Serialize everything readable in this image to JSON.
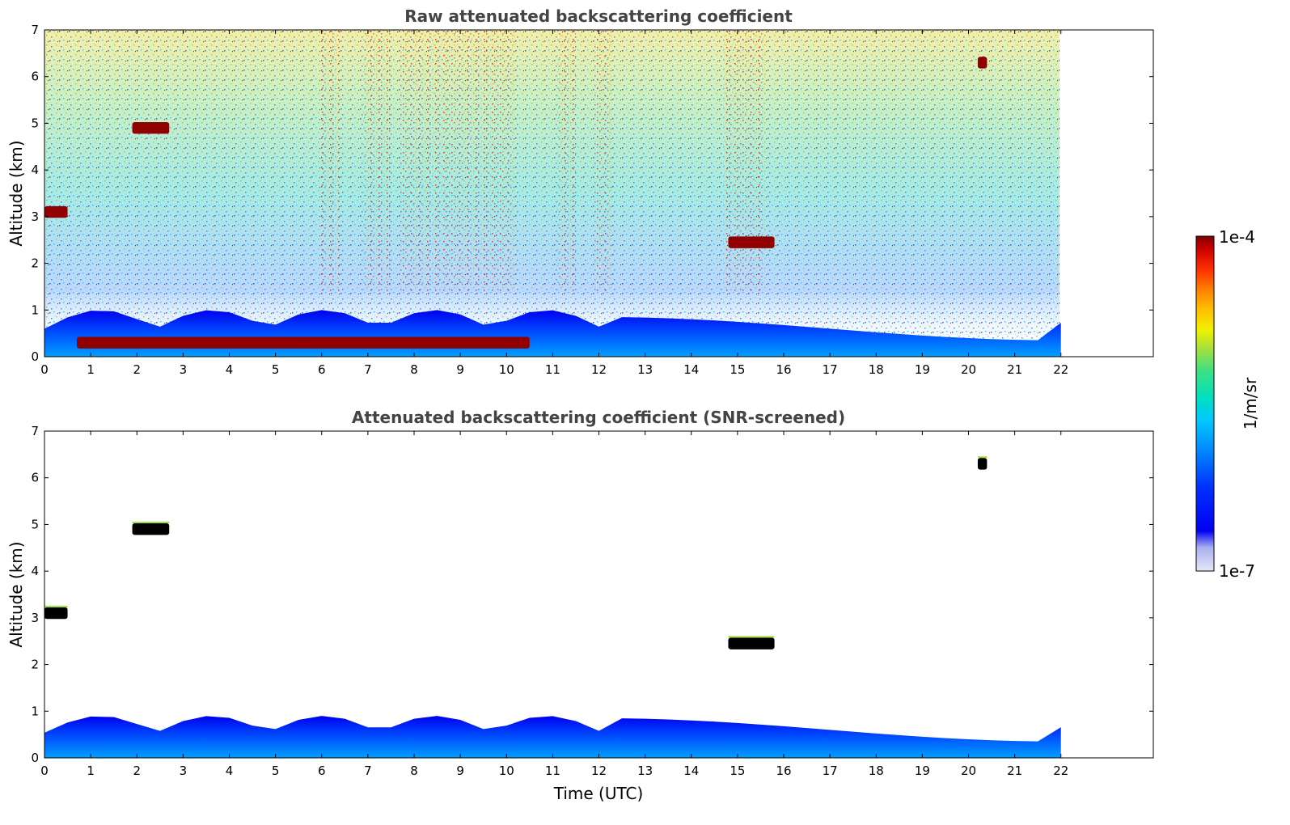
{
  "chart_data": [
    {
      "type": "heatmap",
      "title": "Raw attenuated backscattering coefficient",
      "xlabel": "",
      "ylabel": "Altitude (km)",
      "xlim": [
        0,
        24
      ],
      "ylim": [
        0,
        7
      ],
      "data_xlim": [
        0,
        22
      ],
      "x_ticks": [
        "0",
        "1",
        "2",
        "3",
        "4",
        "5",
        "6",
        "7",
        "8",
        "9",
        "10",
        "11",
        "12",
        "13",
        "14",
        "15",
        "16",
        "17",
        "18",
        "19",
        "20",
        "21",
        "22"
      ],
      "y_ticks": [
        "0",
        "1",
        "2",
        "3",
        "4",
        "5",
        "6",
        "7"
      ],
      "features": [
        {
          "name": "boundary-layer-aerosol",
          "t0": 0,
          "t1": 22,
          "alt_top_km": 1.0,
          "level": "1e-6"
        },
        {
          "name": "cloud-3km",
          "t0": 0.0,
          "t1": 0.5,
          "alt_km": 3.1,
          "level": "1e-4"
        },
        {
          "name": "cloud-5km",
          "t0": 1.9,
          "t1": 2.7,
          "alt_km": 4.9,
          "level": "1e-4"
        },
        {
          "name": "cloud-2.4km",
          "t0": 14.8,
          "t1": 15.8,
          "alt_km": 2.45,
          "level": "1e-4"
        },
        {
          "name": "cloud-6.3km",
          "t0": 20.2,
          "t1": 20.4,
          "alt_km": 6.3,
          "level": "1e-4"
        },
        {
          "name": "low-cloud-0.3km",
          "t0": 0.7,
          "t1": 10.5,
          "alt_km": 0.3,
          "level": "1e-4"
        }
      ]
    },
    {
      "type": "heatmap",
      "title": "Attenuated backscattering coefficient (SNR-screened)",
      "xlabel": "Time (UTC)",
      "ylabel": "Altitude (km)",
      "xlim": [
        0,
        24
      ],
      "ylim": [
        0,
        7
      ],
      "data_xlim": [
        0,
        22
      ],
      "x_ticks": [
        "0",
        "1",
        "2",
        "3",
        "4",
        "5",
        "6",
        "7",
        "8",
        "9",
        "10",
        "11",
        "12",
        "13",
        "14",
        "15",
        "16",
        "17",
        "18",
        "19",
        "20",
        "21",
        "22"
      ],
      "y_ticks": [
        "0",
        "1",
        "2",
        "3",
        "4",
        "5",
        "6",
        "7"
      ],
      "features": [
        {
          "name": "boundary-layer-aerosol",
          "t0": 0,
          "t1": 22,
          "alt_top_km": 0.9,
          "level": "1e-6"
        },
        {
          "name": "cloud-3km",
          "t0": 0.0,
          "t1": 0.5,
          "alt_km": 3.1,
          "level": "1e-4"
        },
        {
          "name": "cloud-5km",
          "t0": 1.9,
          "t1": 2.7,
          "alt_km": 4.9,
          "level": "1e-4"
        },
        {
          "name": "cloud-2.4km",
          "t0": 14.8,
          "t1": 15.8,
          "alt_km": 2.45,
          "level": "1e-4"
        },
        {
          "name": "cloud-6.3km",
          "t0": 20.2,
          "t1": 20.4,
          "alt_km": 6.3,
          "level": "1e-4"
        }
      ]
    }
  ],
  "colorbar": {
    "max_label": "1e-4",
    "min_label": "1e-7",
    "unit_label": "1/m/sr",
    "colors": [
      "#e6e6f7",
      "#aab0f0",
      "#0000f2",
      "#0030ff",
      "#0080ff",
      "#00c8ff",
      "#00e0c0",
      "#40e080",
      "#a0e040",
      "#f0f000",
      "#ffc000",
      "#ff8000",
      "#ff3000",
      "#d00000",
      "#800000"
    ]
  }
}
